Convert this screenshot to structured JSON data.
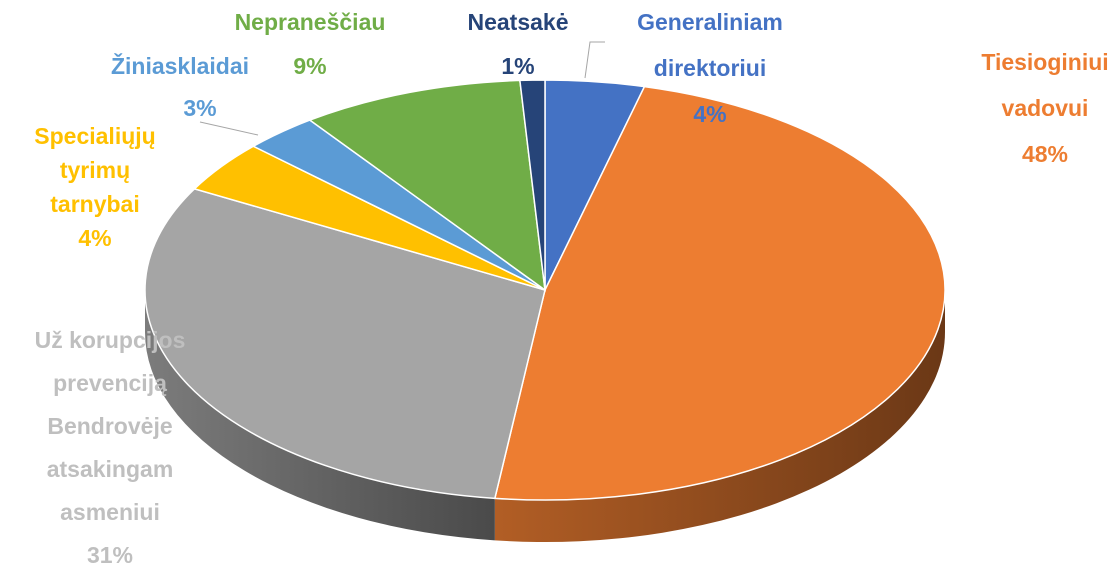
{
  "chart_data": {
    "type": "pie",
    "categories": [
      "Generaliniam direktoriui",
      "Tiesioginiui vadovui",
      "Už korupcijos prevenciją Bendrovėje atsakingam asmeniui",
      "Specialiųjų tyrimų tarnybai",
      "Žiniasklaidai",
      "Nepraneščiau",
      "Neatsakė"
    ],
    "values": [
      4,
      48,
      31,
      4,
      3,
      9,
      1
    ],
    "value_labels": [
      "4%",
      "48%",
      "31%",
      "4%",
      "3%",
      "9%",
      "1%"
    ],
    "colors": [
      "#4472c4",
      "#ed7d31",
      "#a5a5a5",
      "#ffc000",
      "#5b9bd5",
      "#70ad47",
      "#264478"
    ]
  }
}
